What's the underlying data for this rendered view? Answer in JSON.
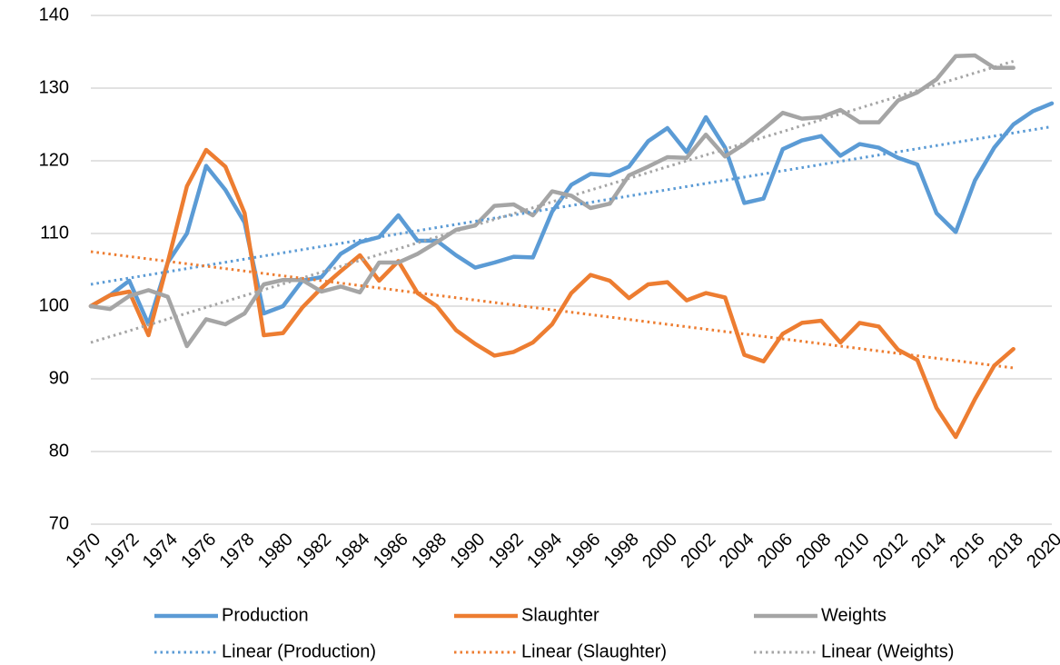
{
  "chart_data": {
    "type": "line",
    "x": [
      1970,
      1971,
      1972,
      1973,
      1974,
      1975,
      1976,
      1977,
      1978,
      1979,
      1980,
      1981,
      1982,
      1983,
      1984,
      1985,
      1986,
      1987,
      1988,
      1989,
      1990,
      1991,
      1992,
      1993,
      1994,
      1995,
      1996,
      1997,
      1998,
      1999,
      2000,
      2001,
      2002,
      2003,
      2004,
      2005,
      2006,
      2007,
      2008,
      2009,
      2010,
      2011,
      2012,
      2013,
      2014,
      2015,
      2016,
      2017,
      2018,
      2019,
      2020
    ],
    "xlim": [
      1970,
      2020
    ],
    "xticks": [
      1970,
      1972,
      1974,
      1976,
      1978,
      1980,
      1982,
      1984,
      1986,
      1988,
      1990,
      1992,
      1994,
      1996,
      1998,
      2000,
      2002,
      2004,
      2006,
      2008,
      2010,
      2012,
      2014,
      2016,
      2018,
      2020
    ],
    "ylim": [
      70,
      140
    ],
    "yticks": [
      70,
      80,
      90,
      100,
      110,
      120,
      130,
      140
    ],
    "grid": true,
    "legend": "bottom",
    "series": [
      {
        "name": "Production",
        "color": "#5b9bd5",
        "style": "solid",
        "values": [
          100,
          101.5,
          103.5,
          97.5,
          106,
          110,
          119.3,
          116,
          111.5,
          99,
          100,
          103.5,
          104,
          107.2,
          108.8,
          109.5,
          112.5,
          109,
          109,
          107,
          105.3,
          106,
          106.8,
          106.7,
          113,
          116.7,
          118.2,
          118,
          119.2,
          122.7,
          124.5,
          121.2,
          126,
          121.8,
          114.2,
          114.8,
          121.6,
          122.8,
          123.4,
          120.7,
          122.3,
          121.8,
          120.4,
          119.5,
          112.8,
          110.2,
          117.3,
          121.8,
          125,
          126.8,
          127.9
        ]
      },
      {
        "name": "Slaughter",
        "color": "#ed7d31",
        "style": "solid",
        "values": [
          100,
          101.5,
          102,
          96,
          106,
          116.5,
          121.5,
          119.2,
          112.8,
          96,
          96.3,
          99.8,
          102.5,
          104.8,
          107,
          103.5,
          106.2,
          101.8,
          100,
          96.7,
          94.8,
          93.2,
          93.7,
          95,
          97.5,
          101.8,
          104.3,
          103.5,
          101.1,
          103,
          103.3,
          100.8,
          101.8,
          101.2,
          93.3,
          92.4,
          96.2,
          97.7,
          98,
          95,
          97.7,
          97.2,
          94,
          92.6,
          86,
          82,
          87.2,
          91.8,
          94.1,
          null,
          null
        ]
      },
      {
        "name": "Weights",
        "color": "#a5a5a5",
        "style": "solid",
        "values": [
          100,
          99.6,
          101.4,
          102.2,
          101.3,
          94.5,
          98.2,
          97.5,
          99,
          103,
          103.6,
          103.6,
          102,
          102.7,
          101.9,
          106,
          106,
          107.2,
          108.8,
          110.5,
          111.1,
          113.8,
          114,
          112.5,
          115.8,
          115.2,
          113.5,
          114.1,
          118,
          119.2,
          120.5,
          120.4,
          123.6,
          120.6,
          122.3,
          124.4,
          126.6,
          125.8,
          126,
          127,
          125.3,
          125.3,
          128.3,
          129.4,
          131.2,
          134.4,
          134.5,
          132.8,
          132.8,
          null,
          null
        ]
      },
      {
        "name": "Linear (Production)",
        "color": "#5b9bd5",
        "style": "dotted",
        "x": [
          1970,
          2020
        ],
        "values": [
          103,
          124.7
        ]
      },
      {
        "name": "Linear (Slaughter)",
        "color": "#ed7d31",
        "style": "dotted",
        "x": [
          1970,
          2018
        ],
        "values": [
          107.5,
          91.5
        ]
      },
      {
        "name": "Linear (Weights)",
        "color": "#a5a5a5",
        "style": "dotted",
        "x": [
          1970,
          2018
        ],
        "values": [
          95,
          133.7
        ]
      }
    ]
  }
}
